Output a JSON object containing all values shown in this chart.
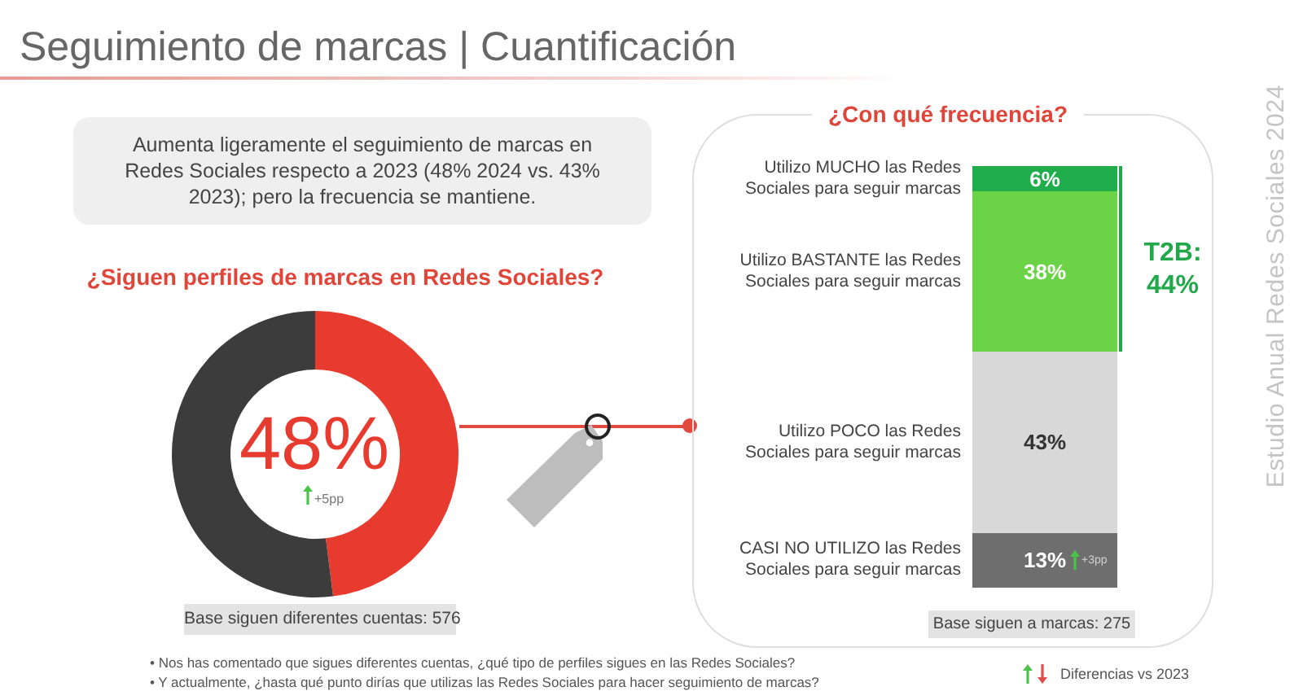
{
  "chart_data": [
    {
      "type": "other",
      "title": "Seguimiento de marcas | Cuantificación",
      "annotations": [
        "Aumenta ligeramente el seguimiento de marcas en Redes Sociales respecto a 2023 (48% 2024 vs. 43% 2023); pero la frecuencia se mantiene.",
        "Estudio Anual Redes Sociales 2024",
        "Diferencias vs 2023"
      ]
    },
    {
      "type": "donut",
      "title": "¿Siguen perfiles de marcas en Redes Sociales?",
      "categories": [
        null,
        null
      ],
      "values": [
        48,
        52
      ],
      "colors": [
        "#e63b2e",
        "#3c3c3c"
      ],
      "annotations": [
        "48%",
        "+5pp",
        "Base siguen diferentes cuentas: 576",
        "• Nos has comentado que sigues diferentes cuentas, ¿qué tipo de perfiles sigues en las Redes Sociales?"
      ]
    },
    {
      "type": "bar",
      "title": "¿Con qué frecuencia?",
      "categories": [
        null
      ],
      "stacked": true,
      "tick_labels": false,
      "series": [
        {
          "name": "CASI NO UTILIZO las Redes Sociales para seguir marcas",
          "color": "#6e6e6e",
          "values": [
            13
          ],
          "value_labels": [
            "13%"
          ]
        },
        {
          "name": "Utilizo POCO las Redes Sociales para seguir marcas",
          "color": "#d8d8d8",
          "values": [
            43
          ],
          "value_labels": [
            "43%"
          ]
        },
        {
          "name": "Utilizo BASTANTE las Redes Sociales para seguir marcas",
          "color": "#6bd346",
          "values": [
            38
          ],
          "value_labels": [
            "38%"
          ]
        },
        {
          "name": "Utilizo MUCHO las Redes Sociales para seguir marcas",
          "color": "#1fae4b",
          "values": [
            6
          ],
          "value_labels": [
            "6%"
          ]
        }
      ],
      "annotations": [
        "T2B: 44%",
        "+3pp",
        "Base siguen a marcas: 275",
        "• Y actualmente, ¿hasta qué punto dirías que utilizas las Redes Sociales para hacer seguimiento de marcas?"
      ]
    }
  ]
}
